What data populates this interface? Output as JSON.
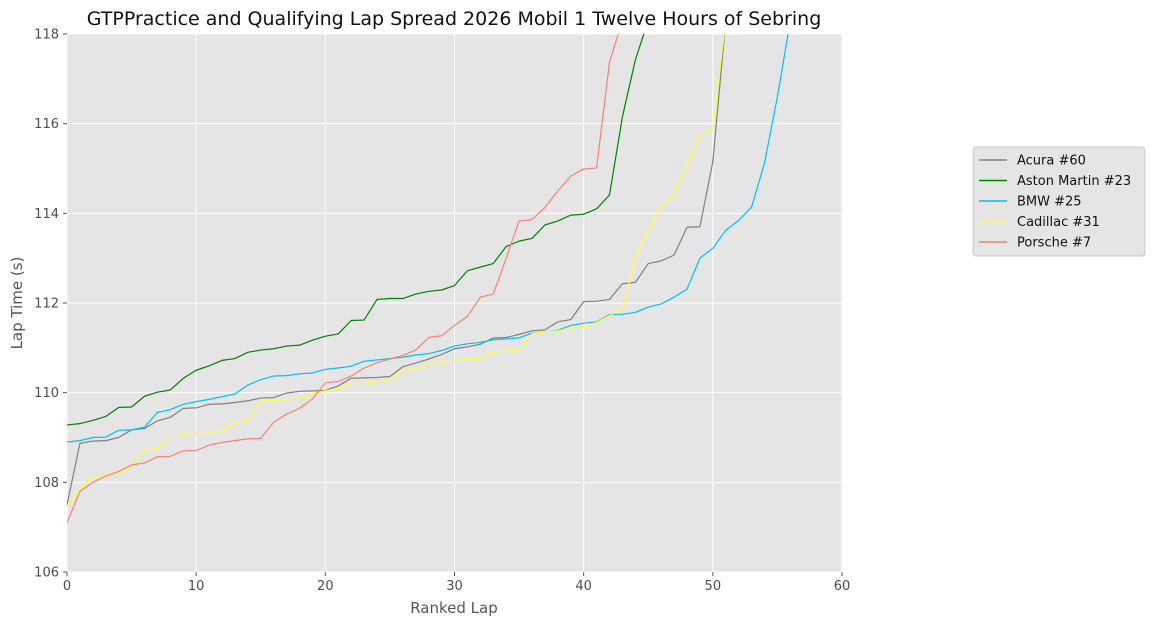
{
  "chart_data": {
    "type": "line",
    "title": "GTPPractice and Qualifying Lap Spread 2026 Mobil 1 Twelve Hours of Sebring",
    "xlabel": "Ranked Lap",
    "ylabel": "Lap Time (s)",
    "xlim": [
      0,
      60
    ],
    "ylim": [
      106,
      118
    ],
    "xticks": [
      0,
      10,
      20,
      30,
      40,
      50,
      60
    ],
    "yticks": [
      106,
      108,
      110,
      112,
      114,
      116,
      118
    ],
    "grid": true,
    "legend_position": "right",
    "series": [
      {
        "name": "Acura #60",
        "color": "#808080",
        "x": [
          0,
          1,
          2,
          3,
          4,
          5,
          6,
          7,
          8,
          9,
          10,
          11,
          12,
          13,
          14,
          15,
          16,
          17,
          18,
          19,
          20,
          21,
          22,
          23,
          24,
          25,
          26,
          27,
          28,
          29,
          30,
          31,
          32,
          33,
          34,
          35,
          36,
          37,
          38,
          39,
          40,
          41,
          42,
          43,
          44,
          45,
          46,
          47,
          48,
          49,
          50,
          51
        ],
        "values": [
          107.5,
          108.87,
          108.92,
          108.93,
          109.0,
          109.17,
          109.2,
          109.37,
          109.45,
          109.65,
          109.66,
          109.74,
          109.75,
          109.78,
          109.82,
          109.88,
          109.89,
          109.99,
          110.03,
          110.04,
          110.05,
          110.15,
          110.32,
          110.33,
          110.34,
          110.36,
          110.58,
          110.66,
          110.75,
          110.85,
          110.98,
          111.02,
          111.08,
          111.22,
          111.23,
          111.3,
          111.38,
          111.4,
          111.58,
          111.63,
          112.03,
          112.04,
          112.08,
          112.43,
          112.46,
          112.88,
          112.94,
          113.07,
          113.69,
          113.7,
          115.15,
          118.3
        ]
      },
      {
        "name": "Aston Martin #23",
        "color": "#008000",
        "x": [
          0,
          1,
          2,
          3,
          4,
          5,
          6,
          7,
          8,
          9,
          10,
          11,
          12,
          13,
          14,
          15,
          16,
          17,
          18,
          19,
          20,
          21,
          22,
          23,
          24,
          25,
          26,
          27,
          28,
          29,
          30,
          31,
          32,
          33,
          34,
          35,
          36,
          37,
          38,
          39,
          40,
          41,
          42,
          43,
          44,
          45
        ],
        "values": [
          109.28,
          109.31,
          109.38,
          109.47,
          109.67,
          109.68,
          109.92,
          110.01,
          110.06,
          110.32,
          110.5,
          110.6,
          110.72,
          110.76,
          110.9,
          110.95,
          110.98,
          111.04,
          111.06,
          111.17,
          111.26,
          111.31,
          111.61,
          111.62,
          112.08,
          112.1,
          112.1,
          112.2,
          112.26,
          112.29,
          112.39,
          112.72,
          112.8,
          112.88,
          113.26,
          113.38,
          113.44,
          113.74,
          113.83,
          113.96,
          113.98,
          114.1,
          114.41,
          116.15,
          117.42,
          118.3
        ]
      },
      {
        "name": "BMW #25",
        "color": "#00bfff",
        "x": [
          0,
          1,
          2,
          3,
          4,
          5,
          6,
          7,
          8,
          9,
          10,
          11,
          12,
          13,
          14,
          15,
          16,
          17,
          18,
          19,
          20,
          21,
          22,
          23,
          24,
          25,
          26,
          27,
          28,
          29,
          30,
          31,
          32,
          33,
          34,
          35,
          36,
          37,
          38,
          39,
          40,
          41,
          42,
          43,
          44,
          45,
          46,
          47,
          48,
          49,
          50,
          51,
          52,
          53,
          54,
          55,
          56
        ],
        "values": [
          108.9,
          108.93,
          109.0,
          109.01,
          109.16,
          109.17,
          109.23,
          109.56,
          109.62,
          109.74,
          109.8,
          109.85,
          109.91,
          109.97,
          110.17,
          110.29,
          110.37,
          110.38,
          110.42,
          110.44,
          110.52,
          110.55,
          110.59,
          110.7,
          110.73,
          110.76,
          110.79,
          110.84,
          110.87,
          110.94,
          111.04,
          111.09,
          111.12,
          111.18,
          111.2,
          111.22,
          111.33,
          111.36,
          111.39,
          111.5,
          111.55,
          111.58,
          111.74,
          111.75,
          111.79,
          111.91,
          111.98,
          112.13,
          112.31,
          113.0,
          113.22,
          113.62,
          113.84,
          114.14,
          115.12,
          116.6,
          118.3
        ]
      },
      {
        "name": "Cadillac #31",
        "color": "#ffff33",
        "x": [
          0,
          1,
          2,
          3,
          4,
          5,
          6,
          7,
          8,
          9,
          10,
          11,
          12,
          13,
          14,
          15,
          16,
          17,
          18,
          19,
          20,
          21,
          22,
          23,
          24,
          25,
          26,
          27,
          28,
          29,
          30,
          31,
          32,
          33,
          34,
          35,
          36,
          37,
          38,
          39,
          40,
          41,
          42,
          43,
          44,
          45,
          46,
          47,
          48,
          49,
          50,
          51
        ],
        "values": [
          107.45,
          107.87,
          108.12,
          108.16,
          108.21,
          108.37,
          108.7,
          108.76,
          109.04,
          109.06,
          109.09,
          109.1,
          109.16,
          109.33,
          109.39,
          109.81,
          109.83,
          109.84,
          109.86,
          109.98,
          110.04,
          110.09,
          110.2,
          110.21,
          110.24,
          110.3,
          110.5,
          110.54,
          110.63,
          110.68,
          110.7,
          110.76,
          110.77,
          110.9,
          110.93,
          110.95,
          111.32,
          111.36,
          111.38,
          111.44,
          111.48,
          111.57,
          111.72,
          111.86,
          113.01,
          113.61,
          114.17,
          114.38,
          115.07,
          115.75,
          115.87,
          118.3
        ]
      },
      {
        "name": "Porsche #7",
        "color": "#fa8072",
        "x": [
          0,
          1,
          2,
          3,
          4,
          5,
          6,
          7,
          8,
          9,
          10,
          11,
          12,
          13,
          14,
          15,
          16,
          17,
          18,
          19,
          20,
          21,
          22,
          23,
          24,
          25,
          26,
          27,
          28,
          29,
          30,
          31,
          32,
          33,
          34,
          35,
          36,
          37,
          38,
          39,
          40,
          41,
          42,
          43
        ],
        "values": [
          107.1,
          107.8,
          108.0,
          108.14,
          108.24,
          108.39,
          108.43,
          108.57,
          108.58,
          108.7,
          108.71,
          108.83,
          108.89,
          108.93,
          108.97,
          108.98,
          109.34,
          109.52,
          109.65,
          109.86,
          110.22,
          110.25,
          110.37,
          110.55,
          110.67,
          110.75,
          110.83,
          110.95,
          111.23,
          111.27,
          111.5,
          111.7,
          112.13,
          112.2,
          113.0,
          113.83,
          113.86,
          114.13,
          114.5,
          114.83,
          114.99,
          115.01,
          117.37,
          118.3
        ]
      }
    ]
  }
}
